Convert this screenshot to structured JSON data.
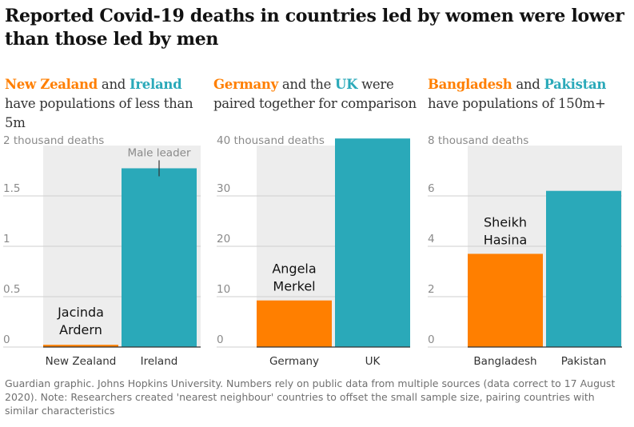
{
  "title": "Reported Covid-19 deaths in countries led by women were lower than those led by men",
  "colors": {
    "female_leader": "#ff7f00",
    "male_leader": "#2aa9b9",
    "panel_bg": "#ededed",
    "grid": "#cfcfcf",
    "axis_text": "#8a8a8a"
  },
  "panels": [
    {
      "heading": {
        "country_a": "New Zealand",
        "mid": " and ",
        "country_b": "Ireland",
        "rest": " have populations of less than 5m"
      }
    },
    {
      "heading": {
        "country_a": "Germany",
        "mid": " and the ",
        "country_b": "UK",
        "rest": " were paired together for comparison"
      }
    },
    {
      "heading": {
        "country_a": "Bangladesh",
        "mid": " and ",
        "country_b": "Pakistan",
        "rest": " have populations of 150m+"
      }
    }
  ],
  "footnote": "Guardian graphic. Johns Hopkins University. Numbers rely on public data from multiple sources (data correct to 17 August 2020). Note: Researchers created 'nearest neighbour' countries to offset the small sample size, pairing countries with similar characteristics",
  "chart_data": [
    {
      "type": "bar",
      "categories": [
        "New Zealand",
        "Ireland"
      ],
      "values": [
        22,
        1774
      ],
      "ylim": [
        0,
        2000
      ],
      "yticks": [
        0,
        500,
        1000,
        1500
      ],
      "ytick_labels": [
        "0",
        "0.5",
        "1",
        "1.5"
      ],
      "ylabel": "2 thousand deaths",
      "bar_roles": [
        "female_leader",
        "male_leader"
      ],
      "leader_label": [
        "Jacinda",
        "Ardern"
      ],
      "annotation": "Male leader"
    },
    {
      "type": "bar",
      "categories": [
        "Germany",
        "UK"
      ],
      "values": [
        9250,
        41400
      ],
      "ylim": [
        0,
        40000
      ],
      "yticks": [
        0,
        10000,
        20000,
        30000
      ],
      "ytick_labels": [
        "0",
        "10",
        "20",
        "30"
      ],
      "ylabel": "40 thousand deaths",
      "bar_roles": [
        "female_leader",
        "male_leader"
      ],
      "leader_label": [
        "Angela",
        "Merkel"
      ]
    },
    {
      "type": "bar",
      "categories": [
        "Bangladesh",
        "Pakistan"
      ],
      "values": [
        3700,
        6200
      ],
      "ylim": [
        0,
        8000
      ],
      "yticks": [
        0,
        2000,
        4000,
        6000
      ],
      "ytick_labels": [
        "0",
        "2",
        "4",
        "6"
      ],
      "ylabel": "8 thousand deaths",
      "bar_roles": [
        "female_leader",
        "male_leader"
      ],
      "leader_label": [
        "Sheikh",
        "Hasina"
      ]
    }
  ]
}
